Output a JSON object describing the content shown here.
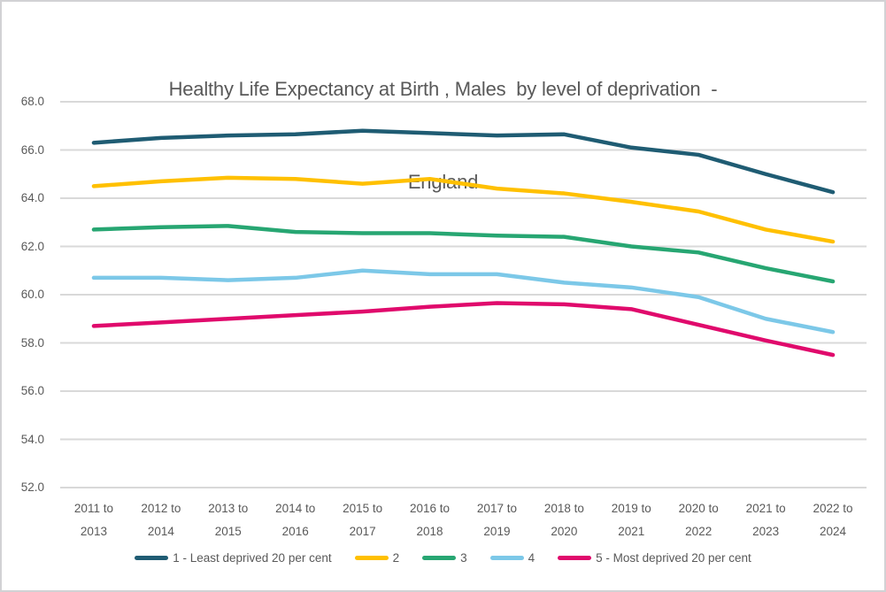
{
  "title": {
    "line1": "Healthy Life Expectancy at Birth , Males  by level of deprivation  -",
    "line2": "England"
  },
  "chart_data": {
    "type": "line",
    "categories": [
      "2011 to 2013",
      "2012 to 2014",
      "2013 to 2015",
      "2014 to 2016",
      "2015 to 2017",
      "2016 to 2018",
      "2017 to 2019",
      "2018 to 2020",
      "2019 to 2021",
      "2020 to 2022",
      "2021 to 2023",
      "2022 to 2024"
    ],
    "series": [
      {
        "name": "1 - Least deprived 20 per cent",
        "color": "#1F5C73",
        "values": [
          66.3,
          66.5,
          66.6,
          66.65,
          66.8,
          66.7,
          66.6,
          66.65,
          66.1,
          65.8,
          65.0,
          64.25
        ]
      },
      {
        "name": "2",
        "color": "#FFC000",
        "values": [
          64.5,
          64.7,
          64.85,
          64.8,
          64.6,
          64.8,
          64.4,
          64.2,
          63.85,
          63.45,
          62.7,
          62.2
        ]
      },
      {
        "name": "3",
        "color": "#27A672",
        "values": [
          62.7,
          62.8,
          62.85,
          62.6,
          62.55,
          62.55,
          62.45,
          62.4,
          62.0,
          61.75,
          61.1,
          60.55
        ]
      },
      {
        "name": "4",
        "color": "#7CC8E8",
        "values": [
          60.7,
          60.7,
          60.6,
          60.7,
          61.0,
          60.85,
          60.85,
          60.5,
          60.3,
          59.9,
          59.0,
          58.45
        ]
      },
      {
        "name": "5 - Most deprived 20 per cent",
        "color": "#E00A6C",
        "values": [
          58.7,
          58.85,
          59.0,
          59.15,
          59.3,
          59.5,
          59.65,
          59.6,
          59.4,
          58.75,
          58.1,
          57.5
        ]
      }
    ],
    "yticks": [
      "68.0",
      "66.0",
      "64.0",
      "62.0",
      "60.0",
      "58.0",
      "56.0",
      "54.0",
      "52.0"
    ],
    "ylim": [
      52.0,
      68.0
    ],
    "ytick_step": 2.0,
    "grid": true,
    "legend_position": "bottom",
    "colors": {
      "grid": "#D9D9D9",
      "axis_text": "#595959",
      "title_text": "#595959",
      "frame_border": "#D2D2D4",
      "background": "#FFFFFF"
    }
  }
}
